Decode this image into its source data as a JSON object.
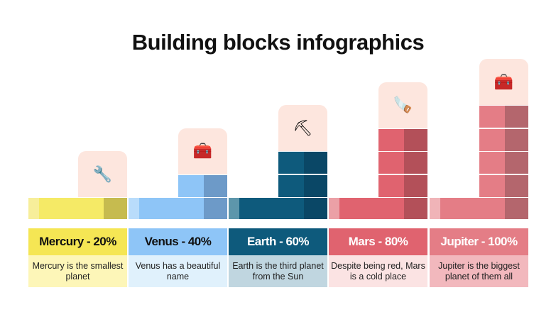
{
  "title": "Building blocks infographics",
  "items": [
    {
      "label": "Mercury - 20%",
      "desc": "Mercury is the smallest planet",
      "percent": 20,
      "icon": "pliers-icon",
      "glyph": "🔧",
      "colors": {
        "main": "#f5ea66",
        "dark": "#c6bb4f",
        "light": "#f7ee9a",
        "header": "#f5e654",
        "header_text": "#111111",
        "desc_bg": "#fdf6b8"
      }
    },
    {
      "label": "Venus - 40%",
      "desc": "Venus has a beautiful name",
      "percent": 40,
      "icon": "tool-belt-icon",
      "glyph": "🧰",
      "colors": {
        "main": "#8ec5f7",
        "dark": "#6d9ac8",
        "light": "#b9dcfb",
        "header": "#8ec5f7",
        "header_text": "#111111",
        "desc_bg": "#e0f1fc"
      }
    },
    {
      "label": "Earth - 60%",
      "desc": "Earth is the third planet from the Sun",
      "percent": 60,
      "icon": "shovel-icon",
      "glyph": "⛏",
      "colors": {
        "main": "#0e5a7c",
        "dark": "#0a4766",
        "light": "#5d96ab",
        "header": "#0e5a7c",
        "header_text": "#ffffff",
        "desc_bg": "#c0d6e0"
      }
    },
    {
      "label": "Mars - 80%",
      "desc": "Despite being red, Mars is a cold place",
      "percent": 80,
      "icon": "saw-icon",
      "glyph": "🪚",
      "colors": {
        "main": "#e0636f",
        "dark": "#b35059",
        "light": "#eba0a6",
        "header": "#e0636f",
        "header_text": "#ffffff",
        "desc_bg": "#fbe3e3"
      }
    },
    {
      "label": "Jupiter - 100%",
      "desc": "Jupiter is the biggest planet of them all",
      "percent": 100,
      "icon": "toolbox-icon",
      "glyph": "🧰",
      "colors": {
        "main": "#e47d86",
        "dark": "#b4666d",
        "light": "#f0b4b8",
        "header": "#e47d86",
        "header_text": "#ffffff",
        "desc_bg": "#f2b8bd"
      }
    }
  ]
}
